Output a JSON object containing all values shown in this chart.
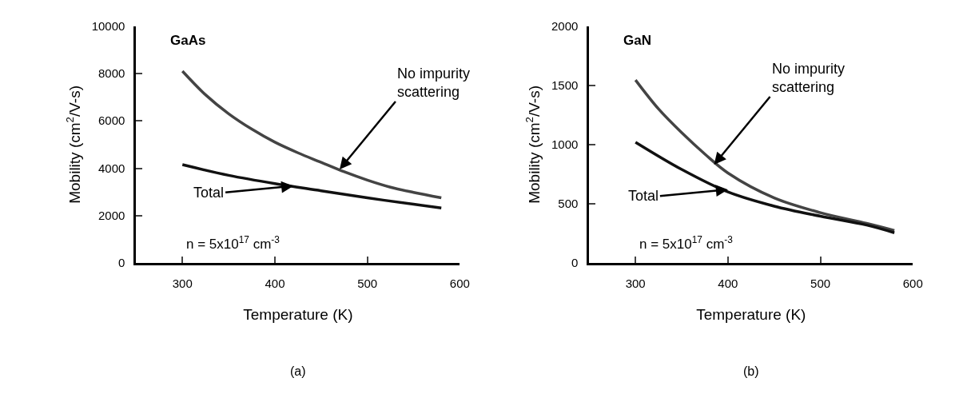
{
  "chart_data": [
    {
      "type": "line",
      "title": "GaAs",
      "xlabel": "Temperature (K)",
      "ylabel": "Mobility (cm$^{2}$/V-s)",
      "x": [
        300,
        325,
        350,
        375,
        400,
        425,
        450,
        475,
        500,
        525,
        550,
        580
      ],
      "series": [
        {
          "color": "#444444",
          "values": [
            8100,
            7100,
            6300,
            5650,
            5100,
            4650,
            4250,
            3850,
            3500,
            3200,
            2980,
            2750
          ]
        },
        {
          "color": "#111111",
          "x": [
            300,
            350,
            400,
            450,
            500,
            550,
            580
          ],
          "values": [
            4150,
            3700,
            3350,
            3050,
            2750,
            2480,
            2320
          ]
        }
      ],
      "xlim": [
        250,
        600
      ],
      "xticks": [
        300,
        400,
        500,
        600
      ],
      "ylim": [
        0,
        10000
      ],
      "yticks": [
        0,
        2000,
        4000,
        6000,
        8000,
        10000
      ],
      "marker": "none",
      "line_style": "solid",
      "annotations": [
        {
          "text": "No impurity scattering",
          "x": 470,
          "y": 3950
        },
        {
          "text": "Total",
          "x": 420,
          "y": 3250
        },
        "n = 5x10$^{17}$ cm$^{-3}$",
        "(a)"
      ]
    },
    {
      "type": "line",
      "title": "GaN",
      "xlabel": "Temperature (K)",
      "ylabel": "Mobility (cm$^{2}$/V-s)",
      "x": [
        300,
        325,
        350,
        375,
        400,
        450,
        500,
        550,
        580
      ],
      "series": [
        {
          "color": "#444444",
          "values": [
            1545,
            1300,
            1100,
            920,
            760,
            550,
            425,
            335,
            275
          ]
        },
        {
          "color": "#111111",
          "x": [
            300,
            350,
            400,
            450,
            500,
            550,
            580
          ],
          "values": [
            1020,
            790,
            600,
            480,
            395,
            320,
            255
          ]
        }
      ],
      "xlim": [
        250,
        600
      ],
      "xticks": [
        300,
        400,
        500,
        600
      ],
      "ylim": [
        0,
        2000
      ],
      "yticks": [
        0,
        500,
        1000,
        1500,
        2000
      ],
      "marker": "none",
      "line_style": "solid",
      "annotations": [
        {
          "text": "No impurity scattering",
          "x": 385,
          "y": 830
        },
        {
          "text": "Total",
          "x": 400,
          "y": 620
        },
        "n = 5x10$^{17}$ cm$^{-3}$",
        "(b)"
      ]
    }
  ]
}
